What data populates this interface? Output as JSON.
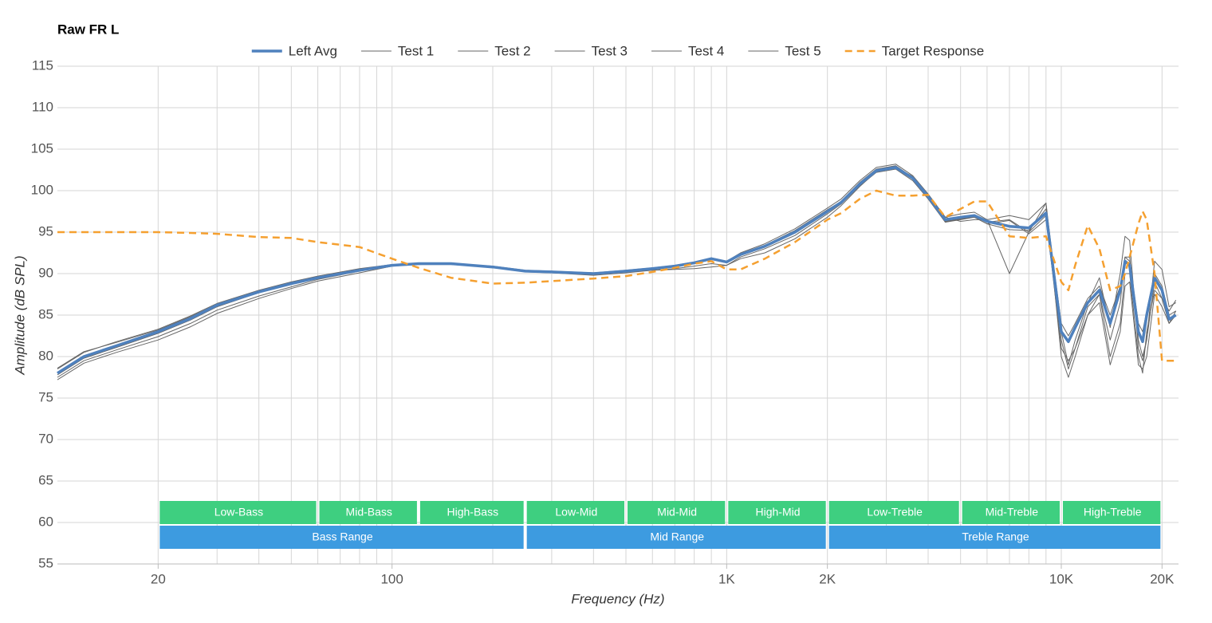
{
  "chart_data": {
    "type": "line",
    "title": "Raw FR L",
    "xlabel": "Frequency (Hz)",
    "ylabel": "Amplitude (dB SPL)",
    "xscale": "log",
    "xlim": [
      10,
      22400
    ],
    "ylim": [
      55,
      115
    ],
    "xticks": [
      20,
      100,
      {
        "value": 1000,
        "label": "1K"
      },
      {
        "value": 2000,
        "label": "2K"
      },
      {
        "value": 10000,
        "label": "10K"
      },
      {
        "value": 20000,
        "label": "20K"
      }
    ],
    "xgrid": [
      20,
      30,
      40,
      50,
      60,
      70,
      80,
      90,
      100,
      200,
      300,
      400,
      500,
      600,
      700,
      800,
      900,
      1000,
      2000,
      3000,
      4000,
      5000,
      6000,
      7000,
      8000,
      9000,
      10000,
      20000
    ],
    "yticks": [
      55,
      60,
      65,
      70,
      75,
      80,
      85,
      90,
      95,
      100,
      105,
      110,
      115
    ],
    "grid": true,
    "legend": "top",
    "x": [
      10,
      12,
      15,
      20,
      25,
      30,
      40,
      50,
      60,
      80,
      100,
      120,
      150,
      200,
      250,
      300,
      400,
      500,
      600,
      700,
      800,
      900,
      1000,
      1100,
      1300,
      1600,
      2000,
      2200,
      2500,
      2800,
      3200,
      3600,
      4000,
      4500,
      5000,
      5500,
      6000,
      7000,
      8000,
      9000,
      10000,
      10500,
      11000,
      12000,
      13000,
      14000,
      15000,
      15500,
      16000,
      17000,
      17500,
      18000,
      19000,
      20000,
      21000,
      22000
    ],
    "series": [
      {
        "name": "Left Avg",
        "color": "#4f81bd",
        "width": 3.5,
        "values": [
          78,
          80,
          81.3,
          83,
          84.6,
          86.2,
          87.8,
          88.8,
          89.5,
          90.4,
          91,
          91.2,
          91.2,
          90.8,
          90.3,
          90.2,
          90,
          90.3,
          90.6,
          90.9,
          91.3,
          91.8,
          91.4,
          92.3,
          93.3,
          95,
          97.5,
          98.6,
          100.8,
          102.4,
          102.8,
          101.5,
          99.3,
          96.5,
          96.8,
          97,
          96.3,
          95.7,
          95.5,
          97.3,
          83,
          81.8,
          83.5,
          86.5,
          88,
          84,
          88,
          91.5,
          91,
          83,
          81.8,
          85,
          89.5,
          88,
          84.5,
          85
        ]
      },
      {
        "name": "Test 1",
        "color": "#666666",
        "width": 1,
        "values": [
          77.5,
          79.5,
          80.8,
          82.4,
          84,
          85.6,
          87.3,
          88.4,
          89.3,
          90.3,
          91,
          91.1,
          91.2,
          90.8,
          90.2,
          90.1,
          89.8,
          90.1,
          90.4,
          90.6,
          90.9,
          91.2,
          91,
          92,
          93,
          94.6,
          97.2,
          98.4,
          100.6,
          102.2,
          102.6,
          101.2,
          99,
          96.2,
          96.5,
          96.8,
          96,
          95.3,
          95.2,
          97.8,
          84,
          82.5,
          84,
          87,
          88.5,
          85,
          88.5,
          92,
          91.5,
          84,
          83,
          85.5,
          90,
          88.5,
          85,
          85.5
        ]
      },
      {
        "name": "Test 2",
        "color": "#666666",
        "width": 1,
        "values": [
          78.5,
          80.5,
          81.8,
          83.3,
          84.9,
          86.4,
          88,
          89,
          89.7,
          90.6,
          91.1,
          91.2,
          91.2,
          90.9,
          90.4,
          90.3,
          90.1,
          90.4,
          90.7,
          91,
          91.4,
          91.9,
          91.5,
          92.5,
          93.6,
          95.4,
          97.9,
          99,
          101.2,
          102.8,
          103.2,
          101.8,
          99.6,
          96.8,
          97.2,
          97.4,
          96.5,
          90,
          95,
          98.5,
          80,
          77.5,
          80,
          85,
          87.5,
          80,
          84,
          90,
          90,
          80,
          78,
          83,
          88,
          87,
          85.5,
          86.8
        ]
      },
      {
        "name": "Test 3",
        "color": "#666666",
        "width": 1,
        "values": [
          77.2,
          79.2,
          80.5,
          82,
          83.6,
          85.2,
          87,
          88.2,
          89.1,
          90.1,
          90.9,
          91.1,
          91.1,
          90.8,
          90.3,
          90.2,
          90,
          90.2,
          90.4,
          90.5,
          90.6,
          90.8,
          91,
          91.8,
          92.5,
          94.2,
          96.8,
          98.2,
          100.5,
          102.3,
          102.8,
          101.7,
          99.5,
          96.8,
          96.3,
          96.5,
          96.5,
          97,
          96.5,
          98.5,
          83,
          79,
          82,
          86.5,
          89.5,
          83.5,
          90,
          94.5,
          94,
          81,
          79.5,
          82,
          91.5,
          90.5,
          86,
          86.5
        ]
      },
      {
        "name": "Test 4",
        "color": "#666666",
        "width": 1,
        "values": [
          78.6,
          80.6,
          81.7,
          83.2,
          84.8,
          86.3,
          87.9,
          88.9,
          89.6,
          90.5,
          91,
          91.2,
          91.2,
          90.8,
          90.3,
          90.2,
          90,
          90.3,
          90.6,
          90.9,
          91.3,
          91.8,
          91.4,
          92.3,
          93.4,
          95.2,
          97.7,
          98.7,
          101,
          102.6,
          103,
          101.6,
          99.3,
          96.3,
          96.6,
          96.9,
          96.2,
          96.5,
          95,
          97,
          81,
          79.5,
          81,
          86,
          87.5,
          82,
          86.5,
          92,
          92,
          82,
          80,
          82,
          89,
          87,
          84,
          85
        ]
      },
      {
        "name": "Test 5",
        "color": "#666666",
        "width": 1,
        "values": [
          77.8,
          79.8,
          81.1,
          82.8,
          84.4,
          86,
          87.7,
          88.7,
          89.4,
          90.4,
          91,
          91.2,
          91.2,
          90.8,
          90.3,
          90.2,
          90,
          90.3,
          90.6,
          90.9,
          91.3,
          91.7,
          91.3,
          92.2,
          93.2,
          94.9,
          97.4,
          98.5,
          100.7,
          102.4,
          102.9,
          101.4,
          99.2,
          96.2,
          96.6,
          96.8,
          96,
          96.4,
          94.8,
          96.5,
          82,
          78.5,
          81,
          85,
          86.5,
          79,
          83,
          88.5,
          89,
          79,
          78.5,
          80,
          87.5,
          86,
          84,
          85.5
        ]
      },
      {
        "name": "Target Response",
        "color": "#f5a030",
        "width": 2.5,
        "dashed": true,
        "values": [
          95,
          95,
          95,
          95,
          94.9,
          94.8,
          94.4,
          94.3,
          93.8,
          93.2,
          91.8,
          90.7,
          89.5,
          88.8,
          88.9,
          89.1,
          89.4,
          89.7,
          90.2,
          90.7,
          91.2,
          91.5,
          90.5,
          90.5,
          91.8,
          93.8,
          96.5,
          97.3,
          99,
          100,
          99.4,
          99.4,
          99.5,
          96.8,
          97.8,
          98.7,
          98.7,
          94.5,
          94.3,
          94.5,
          89,
          88,
          91,
          95.8,
          93,
          88,
          88.5,
          90,
          92,
          96,
          97.5,
          96.5,
          90,
          79.5,
          79.5,
          79.5
        ]
      }
    ],
    "bands": [
      {
        "label": "Low-Bass",
        "start": 20,
        "end": 60,
        "color": "#3ecf80",
        "row": 0
      },
      {
        "label": "Mid-Bass",
        "start": 60,
        "end": 120,
        "color": "#3ecf80",
        "row": 0
      },
      {
        "label": "High-Bass",
        "start": 120,
        "end": 250,
        "color": "#3ecf80",
        "row": 0
      },
      {
        "label": "Low-Mid",
        "start": 250,
        "end": 500,
        "color": "#3ecf80",
        "row": 0
      },
      {
        "label": "Mid-Mid",
        "start": 500,
        "end": 1000,
        "color": "#3ecf80",
        "row": 0
      },
      {
        "label": "High-Mid",
        "start": 1000,
        "end": 2000,
        "color": "#3ecf80",
        "row": 0
      },
      {
        "label": "Low-Treble",
        "start": 2000,
        "end": 5000,
        "color": "#3ecf80",
        "row": 0
      },
      {
        "label": "Mid-Treble",
        "start": 5000,
        "end": 10000,
        "color": "#3ecf80",
        "row": 0
      },
      {
        "label": "High-Treble",
        "start": 10000,
        "end": 20000,
        "color": "#3ecf80",
        "row": 0
      },
      {
        "label": "Bass Range",
        "start": 20,
        "end": 250,
        "color": "#3d9be0",
        "row": 1
      },
      {
        "label": "Mid Range",
        "start": 250,
        "end": 2000,
        "color": "#3d9be0",
        "row": 1
      },
      {
        "label": "Treble Range",
        "start": 2000,
        "end": 20000,
        "color": "#3d9be0",
        "row": 1
      }
    ]
  }
}
